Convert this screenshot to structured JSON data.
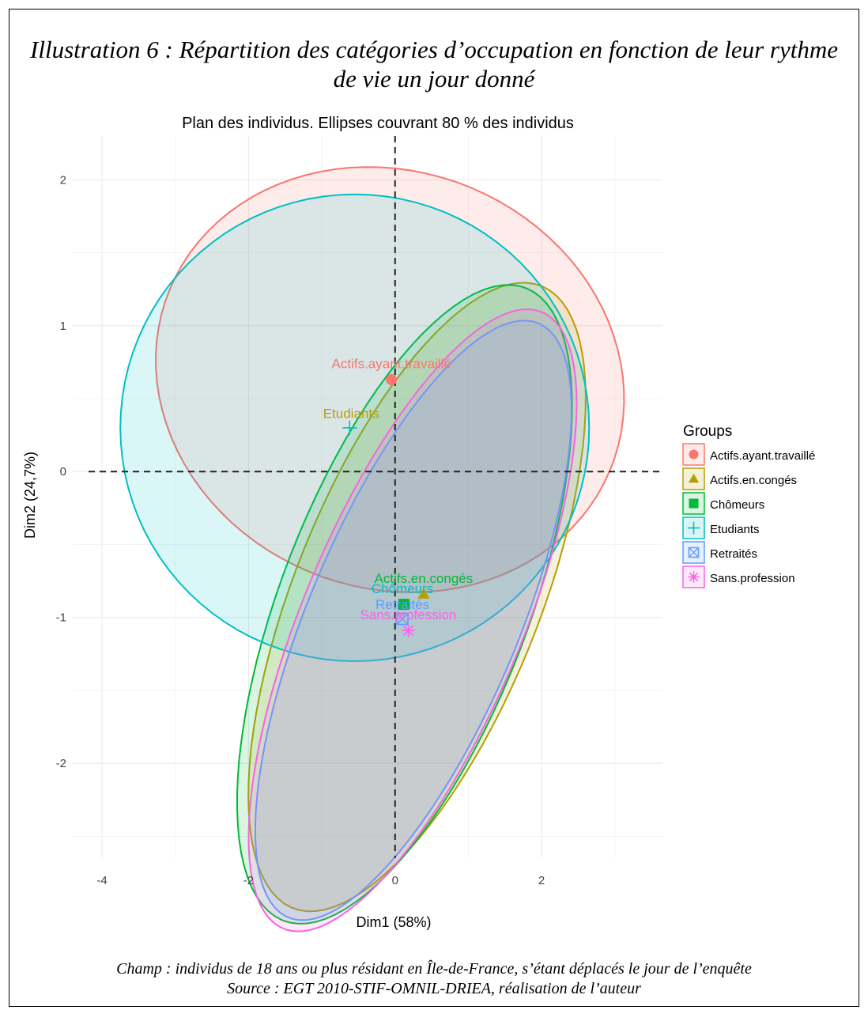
{
  "figure": {
    "title_line1": "Illustration 6 : Répartition des catégories d’occupation en fonction de leur rythme",
    "title_line2": "de vie un jour donné",
    "note_line1": "Champ : individus de 18 ans ou plus résidant en Île-de-France, s’étant déplacés le jour de l’enquête",
    "note_line2": "Source : EGT 2010-STIF-OMNIL-DRIEA, réalisation de l’auteur"
  },
  "chart_data": {
    "type": "scatter",
    "title": "Plan des individus. Ellipses couvrant 80 % des individus",
    "xlabel": "Dim1 (58%)",
    "ylabel": "Dim2 (24,7%)",
    "xlim": [
      -4.4,
      3.65
    ],
    "ylim": [
      -2.65,
      2.3
    ],
    "x_ticks": [
      -4,
      -2,
      0,
      2
    ],
    "y_ticks": [
      -2,
      -1,
      0,
      1,
      2
    ],
    "x_tick_labels": [
      "-4",
      "-2",
      "0",
      "2"
    ],
    "y_tick_labels": [
      "-2",
      "-1",
      "0",
      "1",
      "2"
    ],
    "grid": true,
    "reference_lines": {
      "x": 0,
      "y": 0,
      "style": "dashed"
    },
    "legend": {
      "title": "Groups",
      "position": "right"
    },
    "series": [
      {
        "name": "Actifs.ayant.travaillé",
        "marker": "circle",
        "color": "#F8766D",
        "center": [
          -0.05,
          0.63
        ],
        "ellipse": {
          "cx": -0.07,
          "cy": 0.63,
          "a": 3.2,
          "b": 1.45,
          "angle": -3
        }
      },
      {
        "name": "Actifs.en.congés",
        "marker": "triangle",
        "color": "#B79F00",
        "center": [
          0.39,
          -0.84
        ],
        "ellipse": {
          "cx": 0.3,
          "cy": -0.86,
          "a": 2.85,
          "b": 1.35,
          "angle": 42
        }
      },
      {
        "name": "Chômeurs",
        "marker": "square",
        "color": "#00BA38",
        "center": [
          0.12,
          -0.91
        ],
        "ellipse": {
          "cx": 0.13,
          "cy": -0.91,
          "a": 2.85,
          "b": 1.38,
          "angle": 43
        }
      },
      {
        "name": "Etudiants",
        "marker": "plus",
        "color": "#00BFC4",
        "center": [
          -0.62,
          0.3
        ],
        "ellipse": {
          "cx": -0.55,
          "cy": 0.3,
          "a": 3.2,
          "b": 1.6,
          "angle": 0
        }
      },
      {
        "name": "Retraités",
        "marker": "square-x",
        "color": "#619CFF",
        "center": [
          0.1,
          -1.01
        ],
        "ellipse": {
          "cx": 0.25,
          "cy": -1.02,
          "a": 2.75,
          "b": 1.15,
          "angle": 43
        }
      },
      {
        "name": "Sans.profession",
        "marker": "asterisk",
        "color": "#F564E3",
        "center": [
          0.18,
          -1.09
        ],
        "ellipse": {
          "cx": 0.24,
          "cy": -1.02,
          "a": 2.85,
          "b": 1.2,
          "angle": 43
        }
      }
    ],
    "point_labels": [
      {
        "text": "Actifs.ayant.travaillé",
        "x": -0.05,
        "y": 0.74
      },
      {
        "text": "Etudiants",
        "x": -0.6,
        "y": 0.4
      },
      {
        "text": "Actifs.en.congés",
        "x": 0.39,
        "y": -0.73
      },
      {
        "text": "Chômeurs",
        "x": 0.1,
        "y": -0.8
      },
      {
        "text": "Retraités",
        "x": 0.1,
        "y": -0.91
      },
      {
        "text": "Sans.profession",
        "x": 0.18,
        "y": -0.98
      }
    ]
  }
}
